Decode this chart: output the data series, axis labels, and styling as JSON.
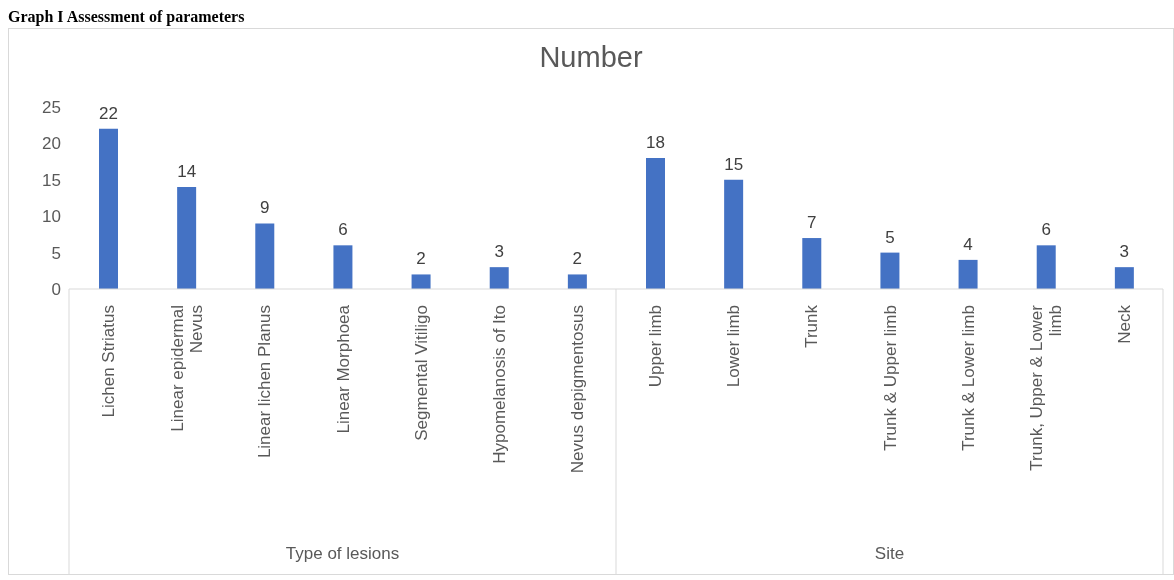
{
  "chart_data": {
    "type": "bar",
    "title": "Number",
    "categories": [
      "Lichen Striatus",
      "Linear epidermal Nevus",
      "Linear lichen Planus",
      "Linear Morphoea",
      "Segmental Vitiligo",
      "Hypomelanosis of Ito",
      "Nevus depigmentosus",
      "Upper limb",
      "Lower limb",
      "Trunk",
      "Trunk & Upper limb",
      "Trunk & Lower limb",
      "Trunk, Upper & Lower limb",
      "Neck"
    ],
    "values": [
      22,
      14,
      9,
      6,
      2,
      3,
      2,
      18,
      15,
      7,
      5,
      4,
      6,
      3
    ],
    "color": "#4472c4",
    "ylim": [
      0,
      25
    ],
    "yticks": [
      0,
      5,
      10,
      15,
      20,
      25
    ],
    "grid": false,
    "legend": false,
    "data_labels": true,
    "annotations": [
      "Graph I Assessment of parameters",
      "Type of lesions",
      "Site"
    ]
  }
}
